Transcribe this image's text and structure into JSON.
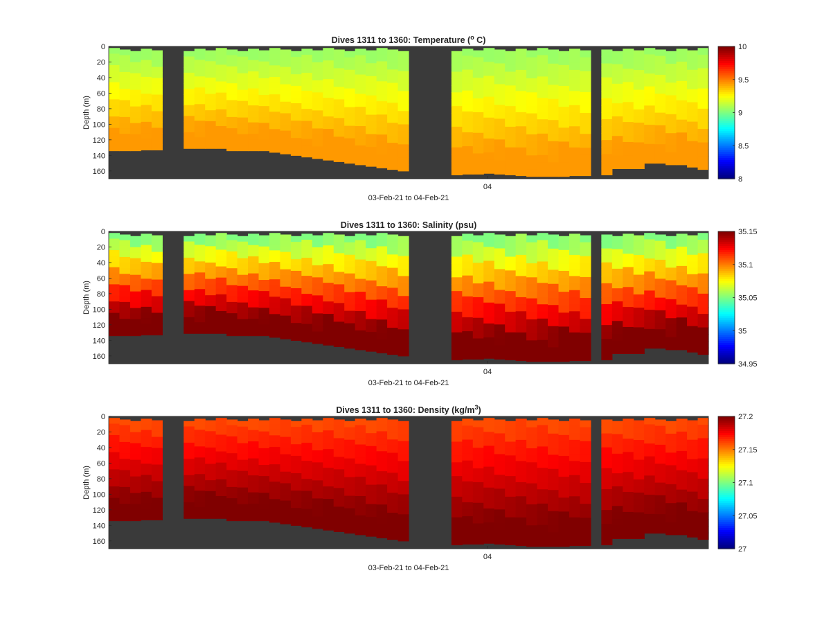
{
  "chart_data": [
    {
      "type": "heatmap",
      "variable": "temperature",
      "title": "Dives 1311 to 1360: Temperature",
      "unit_prefix": "(",
      "unit_main": "o",
      "unit_suffix": " C)",
      "title_unit_style": "superscript",
      "ylabel": "Depth (m)",
      "yticks": [
        "0",
        "20",
        "40",
        "60",
        "80",
        "100",
        "120",
        "140",
        "160"
      ],
      "ylim": [
        0,
        170
      ],
      "xticks": [
        "04"
      ],
      "xlabel": "03-Feb-21 to 04-Feb-21",
      "colorbar": {
        "min": 8,
        "max": 10,
        "ticks": [
          "10",
          "9.5",
          "9",
          "8.5",
          "8"
        ]
      },
      "surface_value": 9.05,
      "deep_value": 9.45,
      "colormap": "jet",
      "background_color": "#3a3a3a"
    },
    {
      "type": "heatmap",
      "variable": "salinity",
      "title": "Dives 1311 to 1360: Salinity (psu)",
      "ylabel": "Depth (m)",
      "yticks": [
        "0",
        "20",
        "40",
        "60",
        "80",
        "100",
        "120",
        "140",
        "160"
      ],
      "ylim": [
        0,
        170
      ],
      "xticks": [
        "04"
      ],
      "xlabel": "03-Feb-21 to 04-Feb-21",
      "colorbar": {
        "min": 34.95,
        "max": 35.15,
        "ticks": [
          "35.15",
          "35.1",
          "35.05",
          "35",
          "34.95"
        ]
      },
      "surface_value": 35.05,
      "deep_value": 35.15,
      "colormap": "jet",
      "background_color": "#3a3a3a"
    },
    {
      "type": "heatmap",
      "variable": "density",
      "title": "Dives 1311 to 1360: Density",
      "unit_prefix": "(kg/m",
      "unit_main": "3",
      "unit_suffix": ")",
      "ylabel": "Depth (m)",
      "yticks": [
        "0",
        "20",
        "40",
        "60",
        "80",
        "100",
        "120",
        "140",
        "160"
      ],
      "ylim": [
        0,
        170
      ],
      "xticks": [
        "04"
      ],
      "xlabel": "03-Feb-21 to 04-Feb-21",
      "colorbar": {
        "min": 27,
        "max": 27.2,
        "ticks": [
          "27.2",
          "27.15",
          "27.1",
          "27.05",
          "27"
        ]
      },
      "surface_value": 27.16,
      "deep_value": 27.2,
      "colormap": "jet",
      "background_color": "#3a3a3a"
    }
  ]
}
